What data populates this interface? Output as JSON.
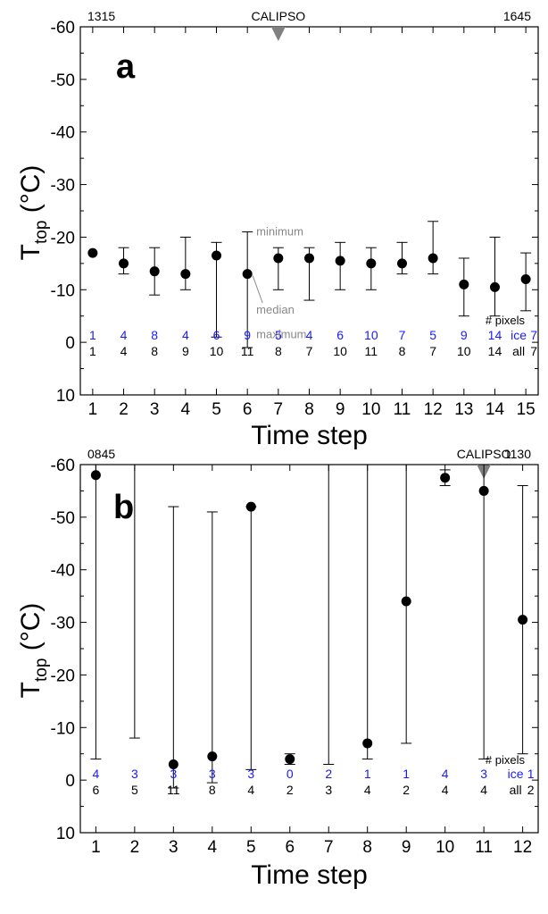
{
  "chart_data": [
    {
      "type": "scatter",
      "panel_label": "a",
      "title": "",
      "xlabel": "Time step",
      "ylabel_main": "T",
      "ylabel_sub": "top",
      "ylabel_unit": "(°C)",
      "xlim": [
        0.6,
        15.4
      ],
      "ylim": [
        10,
        -60
      ],
      "xticks": [
        "1",
        "2",
        "3",
        "4",
        "5",
        "6",
        "7",
        "8",
        "9",
        "10",
        "11",
        "12",
        "13",
        "14",
        "15"
      ],
      "yticks": [
        "-60",
        "-50",
        "-40",
        "-30",
        "-20",
        "-10",
        "0",
        "10"
      ],
      "top_left_label": "1315",
      "top_right_label": "1645",
      "calipso_label": "CALIPSO",
      "calipso_x": 7,
      "annotations": {
        "minimum": "minimum",
        "median": "median",
        "maximum": "maximum"
      },
      "pixels_header": "# pixels",
      "ice_label": "ice",
      "all_label": "all",
      "colors": {
        "ice": "#1a1aff",
        "all": "#000000",
        "marker": "#000000",
        "annotation": "#888888"
      },
      "series": [
        {
          "name": "median",
          "x": [
            1,
            2,
            3,
            4,
            5,
            6,
            7,
            8,
            9,
            10,
            11,
            12,
            13,
            14,
            15
          ],
          "values": [
            -17,
            -15,
            -13.5,
            -13,
            -16.5,
            -13,
            -16,
            -16,
            -15.5,
            -15,
            -15,
            -16,
            -11,
            -10.5,
            -12
          ]
        }
      ],
      "min": [
        -17,
        -18,
        -18,
        -20,
        -19,
        -21,
        -18,
        -18,
        -19,
        -18,
        -19,
        -23,
        -16,
        -20,
        -17
      ],
      "max": [
        -17,
        -13,
        -9,
        -10,
        -1,
        1,
        -10,
        -8,
        -10,
        -10,
        -13,
        -13,
        -5,
        -5,
        -6
      ],
      "ice_counts": [
        "1",
        "4",
        "8",
        "4",
        "6",
        "9",
        "5",
        "4",
        "6",
        "10",
        "7",
        "5",
        "9",
        "14",
        "7"
      ],
      "all_counts": [
        "1",
        "4",
        "8",
        "9",
        "10",
        "11",
        "8",
        "7",
        "10",
        "11",
        "8",
        "7",
        "10",
        "14",
        "7"
      ]
    },
    {
      "type": "scatter",
      "panel_label": "b",
      "title": "",
      "xlabel": "Time step",
      "ylabel_main": "T",
      "ylabel_sub": "top",
      "ylabel_unit": "(°C)",
      "xlim": [
        0.6,
        12.4
      ],
      "ylim": [
        10,
        -60
      ],
      "xticks": [
        "1",
        "2",
        "3",
        "4",
        "5",
        "6",
        "7",
        "8",
        "9",
        "10",
        "11",
        "12"
      ],
      "yticks": [
        "-60",
        "-50",
        "-40",
        "-30",
        "-20",
        "-10",
        "0",
        "10"
      ],
      "top_left_label": "0845",
      "top_right_label": "1130",
      "calipso_label": "CALIPSO",
      "calipso_x": 11,
      "pixels_header": "# pixels",
      "ice_label": "ice",
      "all_label": "all",
      "colors": {
        "ice": "#1a1aff",
        "all": "#000000",
        "marker": "#000000",
        "annotation": "#888888"
      },
      "series": [
        {
          "name": "median",
          "x": [
            1,
            2,
            3,
            4,
            5,
            6,
            7,
            8,
            9,
            10,
            11,
            12
          ],
          "values": [
            -58,
            null,
            -3,
            -4.5,
            -52,
            -4,
            null,
            -7,
            -34,
            -57.5,
            -55,
            -30.5
          ]
        }
      ],
      "min": [
        -60,
        -60,
        -52,
        -51,
        -52,
        -5,
        -60,
        -60,
        -60,
        -59,
        -60,
        -56
      ],
      "max": [
        -4,
        -8,
        1.5,
        0.5,
        -2,
        -3,
        -3,
        -4,
        -7,
        -56,
        -4,
        -5
      ],
      "ice_counts": [
        "4",
        "3",
        "3",
        "3",
        "3",
        "0",
        "2",
        "1",
        "1",
        "4",
        "3",
        "1"
      ],
      "all_counts": [
        "6",
        "5",
        "11",
        "8",
        "4",
        "2",
        "3",
        "4",
        "2",
        "4",
        "4",
        "2"
      ]
    }
  ]
}
